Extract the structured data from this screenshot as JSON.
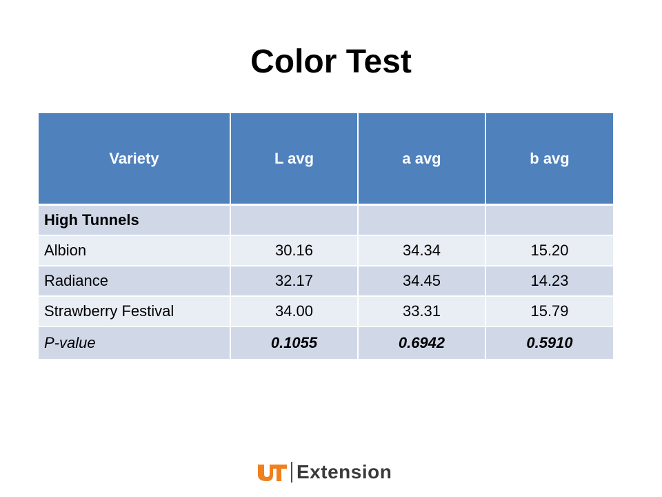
{
  "title": "Color Test",
  "table": {
    "headers": [
      "Variety",
      "L avg",
      "a avg",
      "b avg"
    ],
    "section_label": "High Tunnels",
    "rows": [
      {
        "variety": "Albion",
        "l": "30.16",
        "a": "34.34",
        "b": "15.20"
      },
      {
        "variety": "Radiance",
        "l": "32.17",
        "a": "34.45",
        "b": "14.23"
      },
      {
        "variety": "Strawberry Festival",
        "l": "34.00",
        "a": "33.31",
        "b": "15.79"
      }
    ],
    "pvalue": {
      "label": "P-value",
      "l": "0.1055",
      "a": "0.6942",
      "b": "0.5910"
    }
  },
  "colors": {
    "header_bg": "#4f81bd",
    "row_dark": "#d0d8e8",
    "row_light": "#e9edf4",
    "logo_orange": "#f07f1e"
  },
  "logo": {
    "mark": "UT",
    "text": "Extension"
  }
}
